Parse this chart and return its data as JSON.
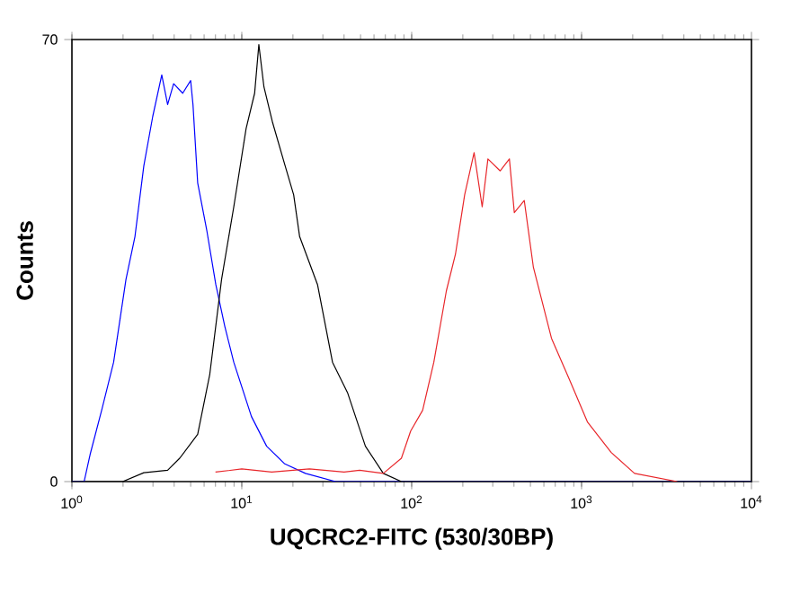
{
  "chart_data": {
    "type": "line",
    "xlabel": "UQCRC2-FITC (530/30BP)",
    "ylabel": "Counts",
    "log": "x",
    "xlim": [
      1,
      10000
    ],
    "ylim": [
      0,
      70
    ],
    "xticks": [
      {
        "value": 1,
        "label": "10$^{0}$"
      },
      {
        "value": 10,
        "label": "10$^{1}$"
      },
      {
        "value": 100,
        "label": "10$^{2}$"
      },
      {
        "value": 1000,
        "label": "10$^{3}$"
      },
      {
        "value": 10000,
        "label": "10$^{4}$"
      }
    ],
    "yticks": [
      0,
      70
    ],
    "marker": "none",
    "line_style": "solid",
    "series": [
      {
        "color": "#0000ff",
        "x": [
          1,
          1.18,
          1.28,
          1.5,
          1.76,
          2.08,
          2.35,
          2.65,
          2.99,
          3.38,
          3.66,
          3.97,
          4.49,
          5.0,
          5.16,
          5.5,
          6.22,
          7.03,
          7.94,
          8.97,
          11.4,
          14.0,
          17.9,
          23.7,
          35.7,
          10000
        ],
        "values": [
          0,
          0,
          4.3,
          11.4,
          18.9,
          32,
          38.8,
          50,
          57.8,
          64.4,
          59.7,
          63,
          61.5,
          63.5,
          59.7,
          47.3,
          39.8,
          31.2,
          24.6,
          18.9,
          10.3,
          5.6,
          2.8,
          1.3,
          0,
          0
        ]
      },
      {
        "color": "#000000",
        "x": [
          1,
          1.99,
          2.65,
          3.66,
          4.31,
          5.5,
          6.48,
          7.6,
          8.97,
          10.6,
          11.9,
          12.6,
          13.5,
          15.2,
          17.9,
          20.2,
          21.9,
          27.9,
          34.2,
          41.9,
          53.4,
          68.1,
          87,
          10000
        ],
        "values": [
          0,
          0,
          1.4,
          1.8,
          3.7,
          7.5,
          17,
          32,
          43.5,
          55.9,
          61.5,
          69.2,
          62.5,
          56.8,
          50.2,
          45.4,
          38.8,
          31.2,
          18.9,
          14.1,
          5.6,
          1.3,
          0,
          0
        ]
      },
      {
        "color": "#e8262a",
        "x": [
          7,
          10,
          15,
          25,
          40,
          49.4,
          68.1,
          87,
          98.6,
          116,
          135,
          160,
          181,
          205,
          233,
          260,
          281,
          332,
          376,
          402,
          460,
          520,
          665,
          853,
          1085,
          1495,
          2050,
          3660
        ],
        "values": [
          1.5,
          2,
          1.5,
          2,
          1.5,
          1.8,
          1.3,
          3.7,
          8,
          11.3,
          18.9,
          30.2,
          36,
          45.4,
          52.1,
          43.5,
          51.1,
          49.2,
          51.1,
          42.6,
          44.5,
          34,
          22.7,
          16,
          9.4,
          4.6,
          1.3,
          0
        ]
      }
    ]
  }
}
